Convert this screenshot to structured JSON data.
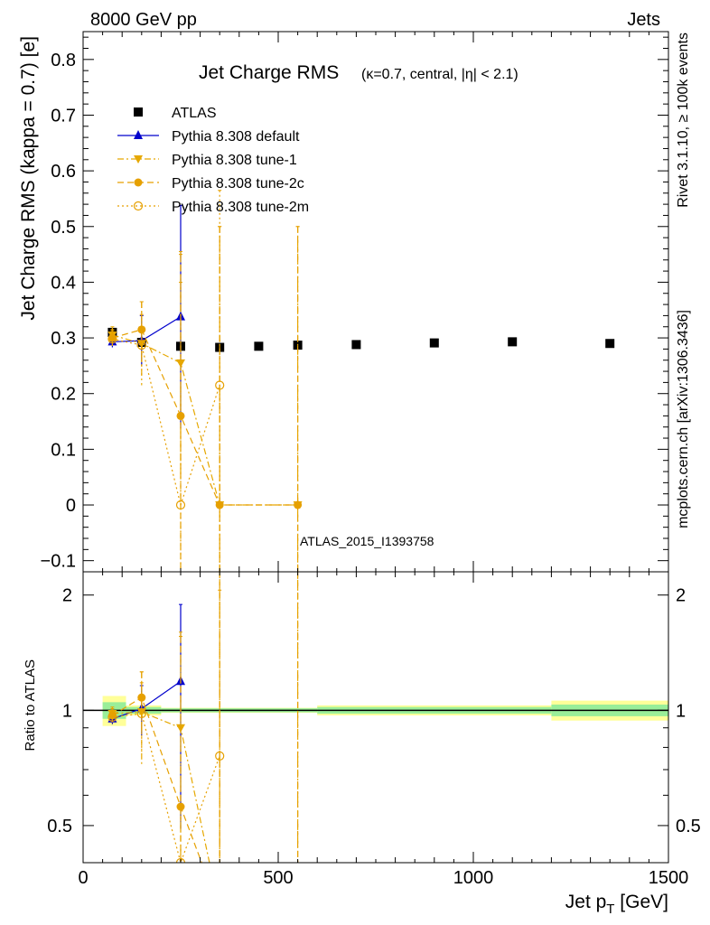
{
  "header": {
    "left": "8000 GeV pp",
    "right": "Jets"
  },
  "title": {
    "main": "Jet Charge RMS",
    "sub": "(κ=0.7, central, |η| < 2.1)"
  },
  "side_labels": {
    "rivet": "Rivet 3.1.10, ≥ 100k events",
    "mcplots": "mcplots.cern.ch [arXiv:1306.3436]"
  },
  "watermark": "ATLAS_2015_I1393758",
  "axes": {
    "ylabel_main": "Jet Charge RMS (kappa = 0.7) [e]",
    "ylabel_ratio": "Ratio to ATLAS",
    "xlabel": "Jet p",
    "xlabel_sub": "T",
    "xlabel_unit": "[GeV]"
  },
  "chart_data": {
    "type": "scatter",
    "x_range": [
      0,
      1500
    ],
    "main_ylim": [
      -0.12,
      0.85
    ],
    "ratio_ylim": [
      0.4,
      2.3
    ],
    "ratio_scale": "log",
    "x_ticks": [
      0,
      500,
      1000,
      1500
    ],
    "main_y_ticks": [
      -0.1,
      0,
      0.1,
      0.2,
      0.3,
      0.4,
      0.5,
      0.6,
      0.7,
      0.8
    ],
    "ratio_y_ticks": [
      0.5,
      1,
      2
    ],
    "legend_position": "top-left",
    "series": [
      {
        "name": "ATLAS",
        "color": "#000000",
        "marker": "square",
        "line": "none",
        "x": [
          75,
          150,
          250,
          350,
          450,
          550,
          700,
          900,
          1100,
          1350
        ],
        "y": [
          0.31,
          0.292,
          0.285,
          0.283,
          0.285,
          0.287,
          0.288,
          0.291,
          0.293,
          0.29
        ],
        "ratio": [
          1,
          1,
          1,
          1,
          1,
          1,
          1,
          1,
          1,
          1
        ]
      },
      {
        "name": "Pythia 8.308 default",
        "color": "#0000cc",
        "marker": "triangle-up",
        "line": "solid",
        "x": [
          75,
          150,
          250
        ],
        "y": [
          0.293,
          0.295,
          0.338
        ],
        "err": [
          0.01,
          0.045,
          0.2
        ],
        "ratio": [
          0.95,
          1.01,
          1.19
        ],
        "ratio_err": [
          0.03,
          0.15,
          0.7
        ]
      },
      {
        "name": "Pythia 8.308 tune-1",
        "color": "#e6a800",
        "marker": "triangle-down",
        "line": "dashdot",
        "x": [
          75,
          150,
          250,
          350,
          550
        ],
        "y": [
          0.305,
          0.29,
          0.255,
          0.0,
          0.0
        ],
        "err": [
          0.015,
          0.075,
          0.2,
          0.5,
          0.5
        ],
        "ratio": [
          0.98,
          0.99,
          0.9
        ],
        "ratio_err": [
          0.04,
          0.27,
          0.7
        ]
      },
      {
        "name": "Pythia 8.308 tune-2c",
        "color": "#e6a000",
        "marker": "circle",
        "line": "dashed",
        "x": [
          75,
          150,
          250,
          350,
          550
        ],
        "y": [
          0.3,
          0.315,
          0.16,
          0.0,
          0.0
        ],
        "err": [
          0.015,
          0.05,
          0.29,
          0.5,
          0.5
        ],
        "ratio": [
          0.97,
          1.08,
          0.56
        ],
        "ratio_err": [
          0.04,
          0.18,
          1.0
        ]
      },
      {
        "name": "Pythia 8.308 tune-2m",
        "color": "#e6a000",
        "marker": "open-circle",
        "line": "dotted",
        "x": [
          75,
          150,
          250,
          350
        ],
        "y": [
          0.298,
          0.287,
          0.0,
          0.215
        ],
        "err": [
          0.015,
          0.055,
          0.4,
          0.35
        ],
        "ratio": [
          0.96,
          0.98,
          0.4,
          0.76
        ],
        "ratio_err": [
          0.04,
          0.2,
          0.0,
          1.3
        ]
      }
    ]
  }
}
